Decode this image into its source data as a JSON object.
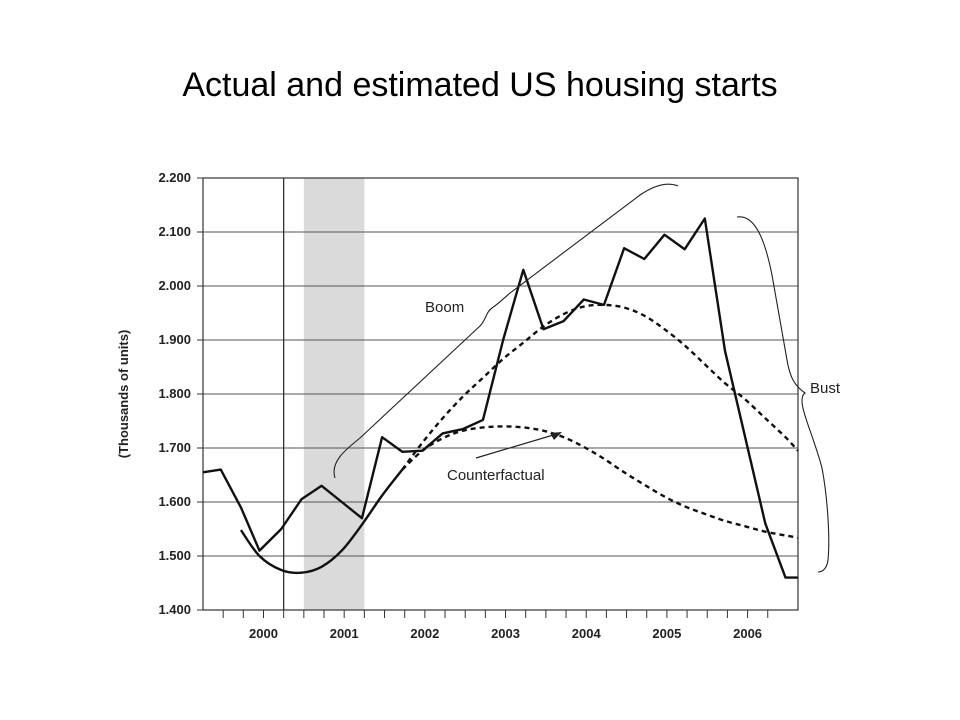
{
  "title": "Actual and estimated US housing starts",
  "chart_data": {
    "type": "line",
    "title": "Actual and estimated US housing starts",
    "ylabel": "(Thousands of units)",
    "xlabel": "",
    "ylim": [
      1.4,
      2.2
    ],
    "yticks": [
      "2.200",
      "2.100",
      "2.000",
      "1.900",
      "1.800",
      "1.700",
      "1.600",
      "1.500",
      "1.400"
    ],
    "ytick_values": [
      2.2,
      2.1,
      2.0,
      1.9,
      1.8,
      1.7,
      1.6,
      1.5,
      1.4
    ],
    "xlim": [
      1999.5,
      2006.875
    ],
    "x_categories": [
      "2000",
      "2001",
      "2002",
      "2003",
      "2004",
      "2005",
      "2006"
    ],
    "grid": "horizontal",
    "shaded_region": [
      2000.75,
      2001.5
    ],
    "vertical_line_x": 2000.5,
    "series": [
      {
        "style": "solid",
        "x": [
          1999.5,
          1999.72,
          1999.97,
          2000.2,
          2000.47,
          2000.72,
          2000.97,
          2001.22,
          2001.47,
          2001.72,
          2001.97,
          2002.22,
          2002.47,
          2002.72,
          2002.97,
          2003.22,
          2003.47,
          2003.72,
          2003.97,
          2004.22,
          2004.47,
          2004.72,
          2004.97,
          2005.22,
          2005.47,
          2005.72,
          2005.97,
          2006.22,
          2006.47,
          2006.72,
          2006.875
        ],
        "y": [
          1.655,
          1.66,
          1.59,
          1.51,
          1.55,
          1.605,
          1.63,
          1.6,
          1.57,
          1.72,
          1.693,
          1.695,
          1.727,
          1.735,
          1.752,
          1.9,
          2.03,
          1.92,
          1.935,
          1.975,
          1.965,
          2.07,
          2.05,
          2.095,
          2.068,
          2.125,
          1.88,
          1.72,
          1.56,
          1.46,
          1.46
        ]
      },
      {
        "style": "smooth",
        "x": [
          1999.97,
          2000.2,
          2000.47,
          2000.72,
          2000.97,
          2001.22,
          2001.47,
          2001.72,
          2001.97
        ],
        "y": [
          1.548,
          1.5,
          1.474,
          1.469,
          1.48,
          1.51,
          1.558,
          1.612,
          1.66
        ]
      },
      {
        "style": "dashed",
        "x": [
          2001.97,
          2002.22,
          2002.47,
          2002.72,
          2002.97,
          2003.22,
          2003.47,
          2003.72,
          2003.97,
          2004.22,
          2004.47,
          2004.72,
          2004.97,
          2005.22,
          2005.47,
          2005.72,
          2005.97,
          2006.22,
          2006.47,
          2006.72,
          2006.875
        ],
        "y": [
          1.66,
          1.71,
          1.755,
          1.795,
          1.83,
          1.865,
          1.895,
          1.925,
          1.948,
          1.962,
          1.965,
          1.96,
          1.945,
          1.92,
          1.89,
          1.855,
          1.82,
          1.79,
          1.755,
          1.72,
          1.695
        ]
      },
      {
        "style": "dashed",
        "x": [
          2001.97,
          2002.22,
          2002.47,
          2002.72,
          2002.97,
          2003.22,
          2003.47,
          2003.72,
          2003.97,
          2004.22,
          2004.47,
          2004.72,
          2004.97,
          2005.22,
          2005.47,
          2005.72,
          2005.97,
          2006.22,
          2006.47,
          2006.72,
          2006.875
        ],
        "y": [
          1.66,
          1.695,
          1.718,
          1.732,
          1.738,
          1.74,
          1.738,
          1.732,
          1.72,
          1.702,
          1.68,
          1.655,
          1.632,
          1.61,
          1.592,
          1.578,
          1.565,
          1.555,
          1.545,
          1.538,
          1.534
        ]
      }
    ],
    "annotations": {
      "boom": "Boom",
      "bust": "Bust",
      "counterfactual": "Counterfactual"
    }
  }
}
